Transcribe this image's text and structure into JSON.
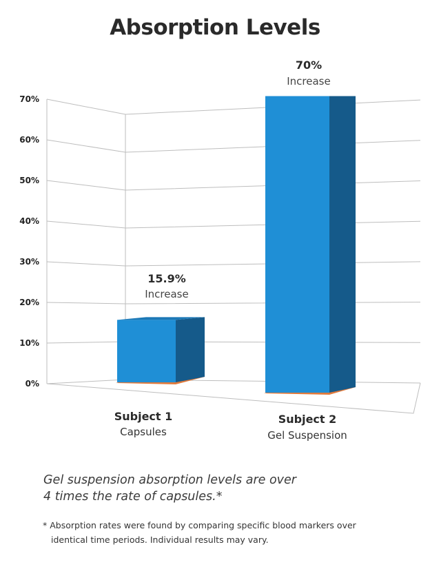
{
  "chart_data": {
    "type": "bar",
    "title": "Absorption Levels",
    "categories": [
      "Subject 1",
      "Subject 2"
    ],
    "category_subtitles": [
      "Capsules",
      "Gel Suspension"
    ],
    "values": [
      15.9,
      70
    ],
    "data_labels": [
      {
        "value": "15.9%",
        "sub": "Increase"
      },
      {
        "value": "70%",
        "sub": "Increase"
      }
    ],
    "yticks": [
      "0%",
      "10%",
      "20%",
      "30%",
      "40%",
      "50%",
      "60%",
      "70%"
    ],
    "ylim": [
      0,
      70
    ],
    "grid": true,
    "style": "3d",
    "colors": {
      "front": "#1f8fd6",
      "side": "#155a8a",
      "top": "#1b78b6",
      "base": "#e07a3c",
      "grid": "#bdbdbd"
    }
  },
  "note_lines": [
    "Gel suspension absorption levels are over",
    "4 times the rate of capsules.*"
  ],
  "footnote_lines": [
    "* Absorption rates were found by comparing specific blood markers over",
    "identical time periods. Individual results may vary."
  ]
}
